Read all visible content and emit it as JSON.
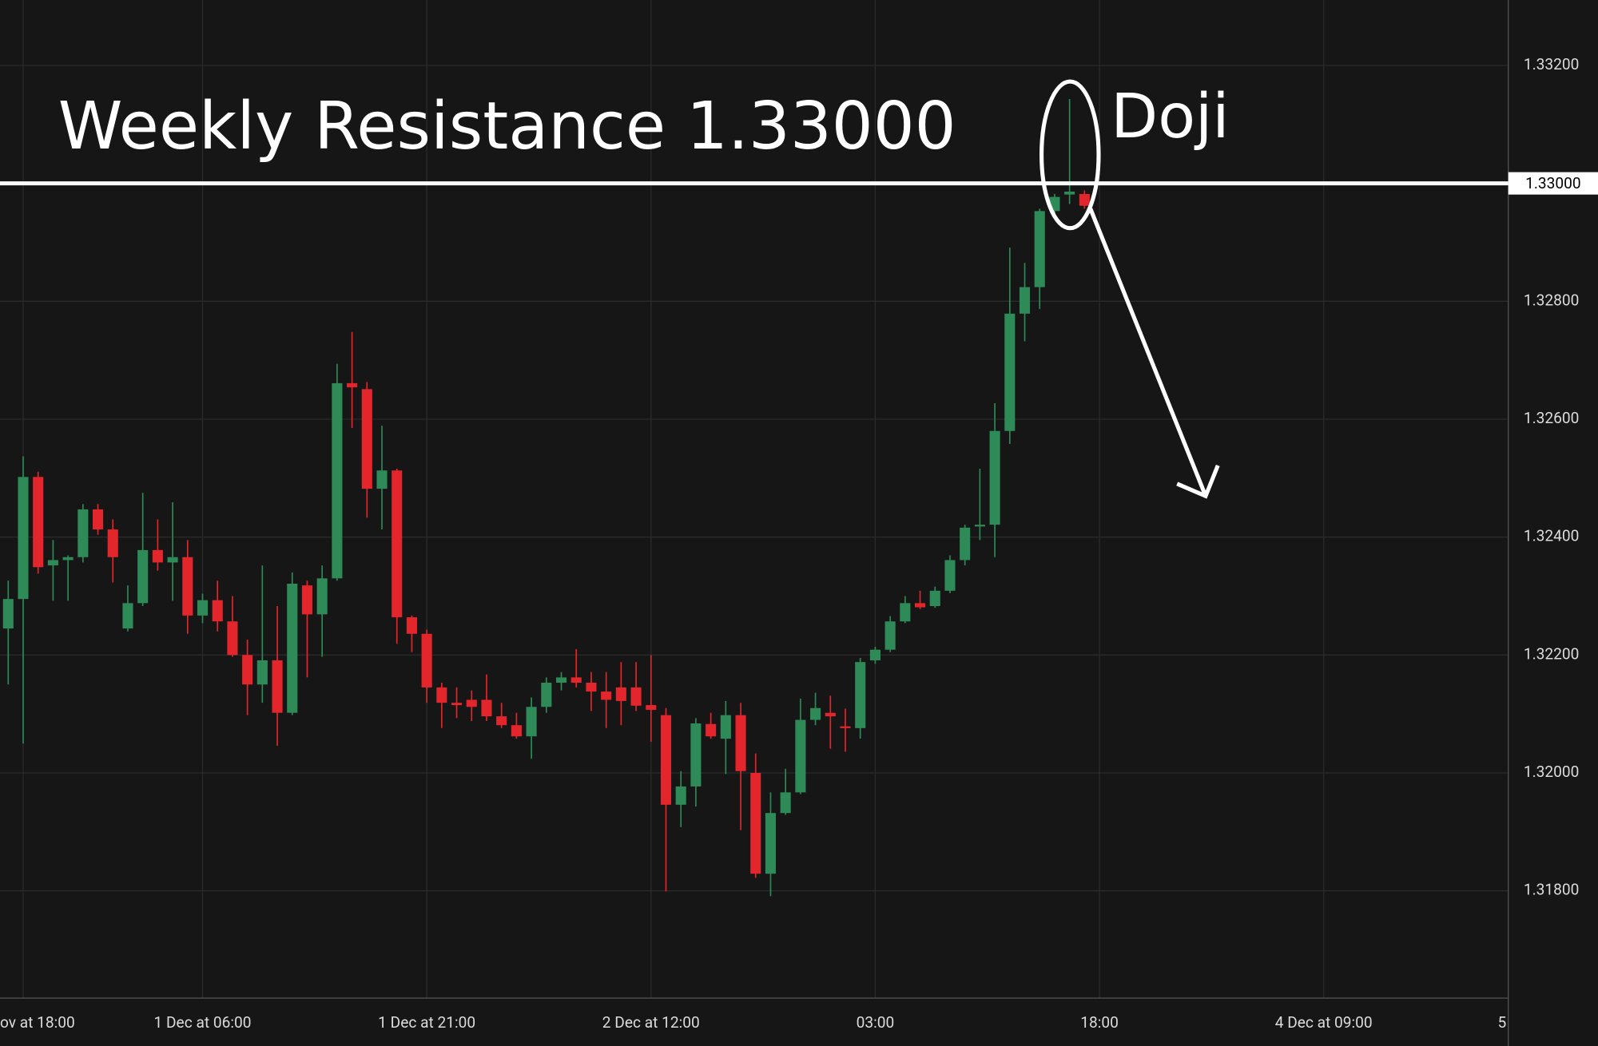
{
  "chart_data": {
    "type": "candlestick",
    "annotations": {
      "resistance_text": "Weekly Resistance 1.33000",
      "doji_text": "Doji"
    },
    "resistance": {
      "value": 1.33,
      "label": "1.33000"
    },
    "up_color": "#2e8b57",
    "down_color": "#e3262b",
    "grid": true,
    "open": [
      1.32245,
      1.32295,
      1.32502,
      1.32352,
      1.32361,
      1.32366,
      1.32447,
      1.32413,
      1.32245,
      1.32288,
      1.32378,
      1.32357,
      1.32366,
      1.32267,
      1.32293,
      1.32257,
      1.322,
      1.3215,
      1.32191,
      1.32102,
      1.32318,
      1.32269,
      1.3233,
      1.32661,
      1.32651,
      1.32482,
      1.32513,
      1.32264,
      1.32236,
      1.32145,
      1.32119,
      1.32124,
      1.32124,
      1.32096,
      1.32081,
      1.32062,
      1.32112,
      1.32153,
      1.32162,
      1.32153,
      1.32138,
      1.32145,
      1.32145,
      1.32115,
      1.32098,
      1.31946,
      1.31977,
      1.32083,
      1.32058,
      1.32098,
      1.32,
      1.31829,
      1.31932,
      1.31967,
      1.3209,
      1.32102,
      1.32079,
      1.32076,
      1.32191,
      1.32209,
      1.32257,
      1.32288,
      1.32283,
      1.32309,
      1.32361,
      1.32418,
      1.32421,
      1.3258,
      1.32779,
      1.32824,
      1.32953,
      1.32981,
      1.32982
    ],
    "high": [
      1.32326,
      1.32537,
      1.32511,
      1.32395,
      1.32369,
      1.32456,
      1.32456,
      1.3243,
      1.32318,
      1.32475,
      1.3243,
      1.32459,
      1.32395,
      1.32304,
      1.32326,
      1.323,
      1.32226,
      1.32352,
      1.32283,
      1.3234,
      1.32326,
      1.32352,
      1.32694,
      1.32748,
      1.32663,
      1.32589,
      1.32516,
      1.32267,
      1.32243,
      1.32153,
      1.32145,
      1.3214,
      1.32167,
      1.32119,
      1.32102,
      1.32128,
      1.32162,
      1.32171,
      1.3221,
      1.32171,
      1.32171,
      1.32188,
      1.32188,
      1.322,
      1.3211,
      1.32003,
      1.32093,
      1.32102,
      1.32122,
      1.32119,
      1.32033,
      1.31967,
      1.32007,
      1.32126,
      1.32136,
      1.32131,
      1.32109,
      1.32195,
      1.32214,
      1.32266,
      1.323,
      1.32309,
      1.32316,
      1.32369,
      1.32421,
      1.32516,
      1.32627,
      1.32891,
      1.32865,
      1.32957,
      1.32982,
      1.33143,
      1.32988
    ],
    "low": [
      1.3215,
      1.3205,
      1.32338,
      1.32292,
      1.32292,
      1.32357,
      1.32404,
      1.32323,
      1.3224,
      1.32283,
      1.32343,
      1.32292,
      1.32236,
      1.32254,
      1.3224,
      1.32197,
      1.32098,
      1.32119,
      1.32046,
      1.32098,
      1.32162,
      1.32197,
      1.32326,
      1.32585,
      1.32433,
      1.32413,
      1.32219,
      1.32205,
      1.32119,
      1.32076,
      1.32093,
      1.32088,
      1.32088,
      1.32076,
      1.32058,
      1.32024,
      1.32102,
      1.3214,
      1.32145,
      1.32105,
      1.32076,
      1.32081,
      1.32105,
      1.32053,
      1.31799,
      1.31908,
      1.31943,
      1.32058,
      1.31998,
      1.31903,
      1.31822,
      1.31791,
      1.31929,
      1.31964,
      1.32081,
      1.32041,
      1.32036,
      1.32058,
      1.32185,
      1.32205,
      1.32254,
      1.32278,
      1.3228,
      1.32305,
      1.32352,
      1.32395,
      1.32366,
      1.32558,
      1.32732,
      1.32787,
      1.32948,
      1.32965,
      1.32957
    ],
    "close": [
      1.32295,
      1.32502,
      1.32349,
      1.32361,
      1.32366,
      1.32447,
      1.32413,
      1.32366,
      1.32288,
      1.32378,
      1.32357,
      1.32366,
      1.32267,
      1.32293,
      1.32257,
      1.322,
      1.3215,
      1.32191,
      1.32102,
      1.32321,
      1.32269,
      1.3233,
      1.32661,
      1.32654,
      1.32482,
      1.32513,
      1.32264,
      1.32236,
      1.32145,
      1.32119,
      1.32115,
      1.32112,
      1.32096,
      1.32081,
      1.32062,
      1.32112,
      1.32153,
      1.32162,
      1.32153,
      1.32138,
      1.32124,
      1.32122,
      1.32114,
      1.32107,
      1.31946,
      1.31977,
      1.32084,
      1.32062,
      1.32098,
      1.32003,
      1.31829,
      1.31932,
      1.31967,
      1.3209,
      1.3211,
      1.32096,
      1.32076,
      1.32188,
      1.32209,
      1.32257,
      1.32288,
      1.32281,
      1.32309,
      1.32361,
      1.32416,
      1.32421,
      1.3258,
      1.32779,
      1.32824,
      1.32953,
      1.32977,
      1.32986,
      1.32962
    ],
    "xlim": [
      -0.55,
      100.35
    ],
    "xticks": [
      {
        "value": 1,
        "label": "ov at 18:00"
      },
      {
        "value": 13,
        "label": "1 Dec at 06:00"
      },
      {
        "value": 28,
        "label": "1 Dec at 21:00"
      },
      {
        "value": 43,
        "label": "2 Dec at 12:00"
      },
      {
        "value": 58,
        "label": "03:00"
      },
      {
        "value": 73,
        "label": "18:00"
      },
      {
        "value": 88,
        "label": "4 Dec at 09:00"
      },
      {
        "value": 103,
        "label": "5"
      }
    ],
    "ylim": [
      1.31618,
      1.33311
    ],
    "yticks": [
      {
        "value": 1.318,
        "label": "1.31800"
      },
      {
        "value": 1.32,
        "label": "1.32000"
      },
      {
        "value": 1.322,
        "label": "1.32200"
      },
      {
        "value": 1.324,
        "label": "1.32400"
      },
      {
        "value": 1.326,
        "label": "1.32600"
      },
      {
        "value": 1.328,
        "label": "1.32800"
      },
      {
        "value": 1.332,
        "label": "1.33200"
      }
    ]
  }
}
